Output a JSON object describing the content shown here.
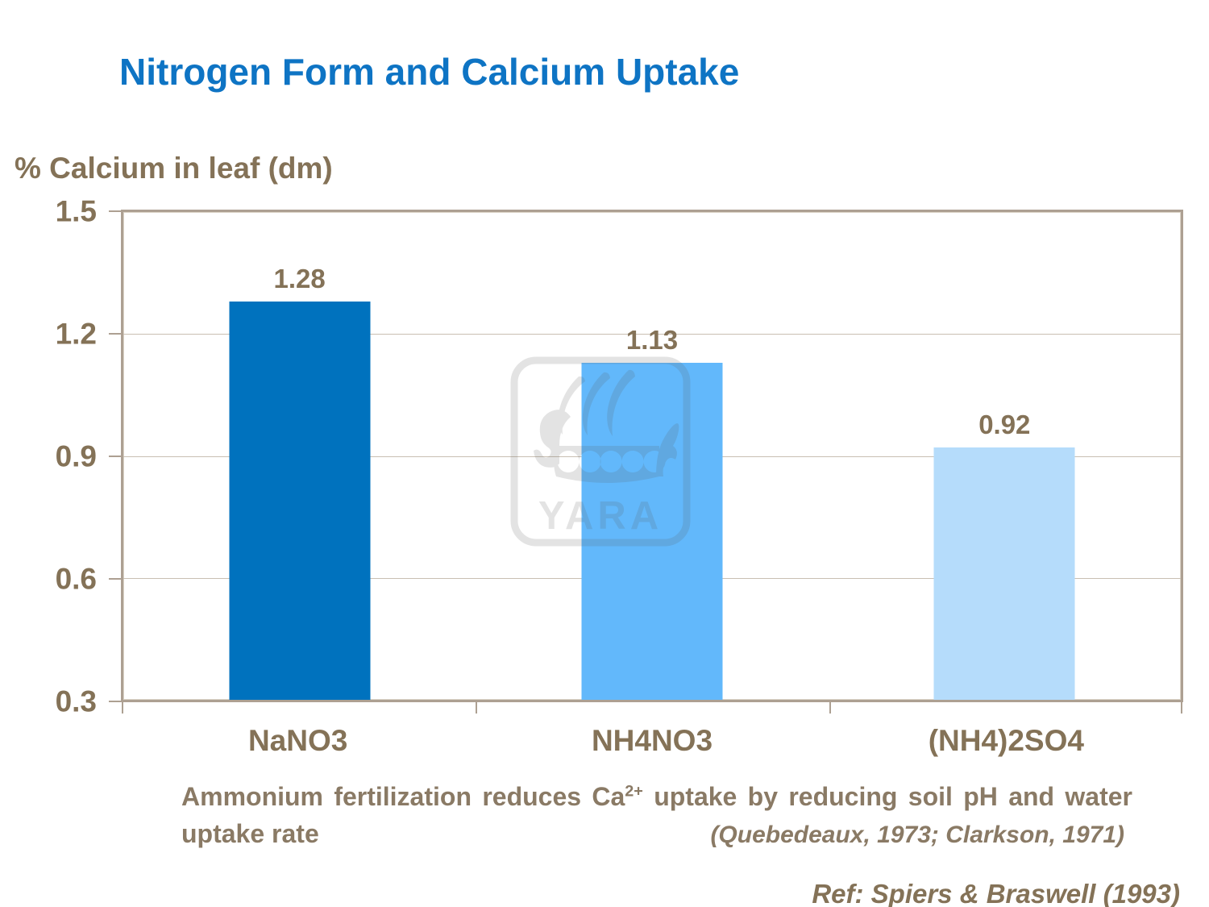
{
  "slide": {
    "title": "Nitrogen Form and Calcium Uptake",
    "reference": "Ref: Spiers & Braswell (1993)"
  },
  "chart_data": {
    "type": "bar",
    "title": "Nitrogen Form and Calcium Uptake",
    "ylabel": "% Calcium in leaf (dm)",
    "xlabel": "",
    "categories": [
      "NaNO3",
      "NH4NO3",
      "(NH4)2SO4"
    ],
    "values": [
      1.28,
      1.13,
      0.92
    ],
    "value_labels": [
      "1.28",
      "1.13",
      "0.92"
    ],
    "ylim": [
      0.3,
      1.5
    ],
    "ytick_labels": [
      "1.5",
      "1.2",
      "0.9",
      "0.6",
      "0.3"
    ],
    "grid": "horizontal gridlines at 0.6, 0.9, 1.2",
    "legend": "none",
    "bar_colors": [
      "#0072BE",
      "#62B8FB",
      "#B5DCFB"
    ]
  },
  "caption": {
    "line1_pre": "Ammonium fertilization reduces Ca",
    "superscript": "2+",
    "line1_post": " uptake by reducing soil pH and water",
    "line2_left": "uptake rate",
    "line2_right": "(Quebedeaux, 1973; Clarkson, 1971)"
  },
  "watermark": {
    "brand": "YARA"
  },
  "colors": {
    "title_blue": "#0E74C4",
    "text_brown": "#847257",
    "frame": "#ADA092",
    "gridline": "#C9BFB2"
  }
}
